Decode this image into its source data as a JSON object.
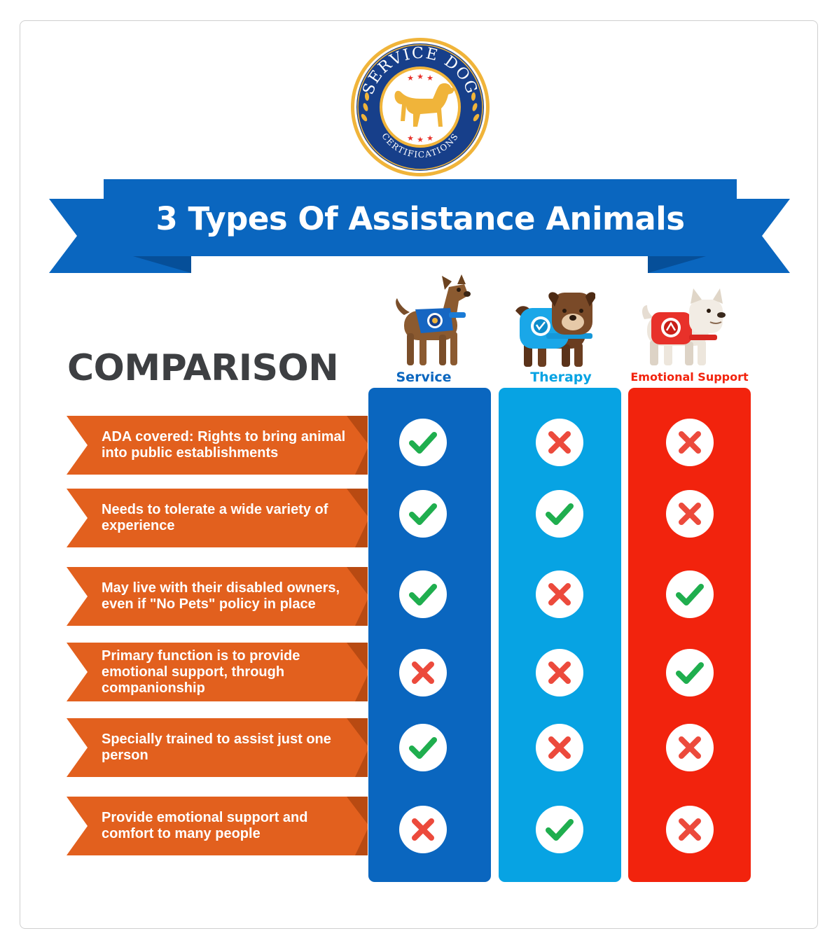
{
  "brand": {
    "seal_top_text": "SERVICE DOG",
    "seal_bottom_text": "CERTIFICATIONS",
    "seal_icon": "dog-silhouette-icon"
  },
  "header": {
    "title": "3 Types Of Assistance Animals"
  },
  "comparison_heading": "COMPARISON",
  "columns": [
    {
      "label": "Service",
      "color": "#0a66bf",
      "label_color": "#0a66bf",
      "dog_icon": "service-dog-illustration"
    },
    {
      "label": "Therapy",
      "color": "#07a3e3",
      "label_color": "#07a3e3",
      "dog_icon": "therapy-dog-illustration"
    },
    {
      "label": "Emotional Support",
      "color": "#f2230d",
      "label_color": "#f2230d",
      "dog_icon": "emotional-support-dog-illustration"
    }
  ],
  "rows": [
    {
      "label": "ADA covered: Rights to bring animal into public establishments",
      "values": [
        "check",
        "cross",
        "cross"
      ]
    },
    {
      "label": "Needs to tolerate a wide variety of experience",
      "values": [
        "check",
        "check",
        "cross"
      ]
    },
    {
      "label": "May live with their disabled owners, even if \"No Pets\" policy in place",
      "values": [
        "check",
        "cross",
        "check"
      ]
    },
    {
      "label": "Primary function is to provide emotional support, through companionship",
      "values": [
        "cross",
        "cross",
        "check"
      ]
    },
    {
      "label": "Specially trained to assist just one person",
      "values": [
        "check",
        "cross",
        "cross"
      ]
    },
    {
      "label": "Provide emotional support and comfort to many people",
      "values": [
        "cross",
        "check",
        "cross"
      ]
    }
  ],
  "colors": {
    "banner": "#0a66bf",
    "banner_fold": "#064f99",
    "row_bar": "#e2601e",
    "row_bar_edge": "#b84a12",
    "check": "#1fae4e",
    "cross": "#ec4a3c",
    "heading": "#3d3f42",
    "seal_gold": "#f0b43a"
  }
}
